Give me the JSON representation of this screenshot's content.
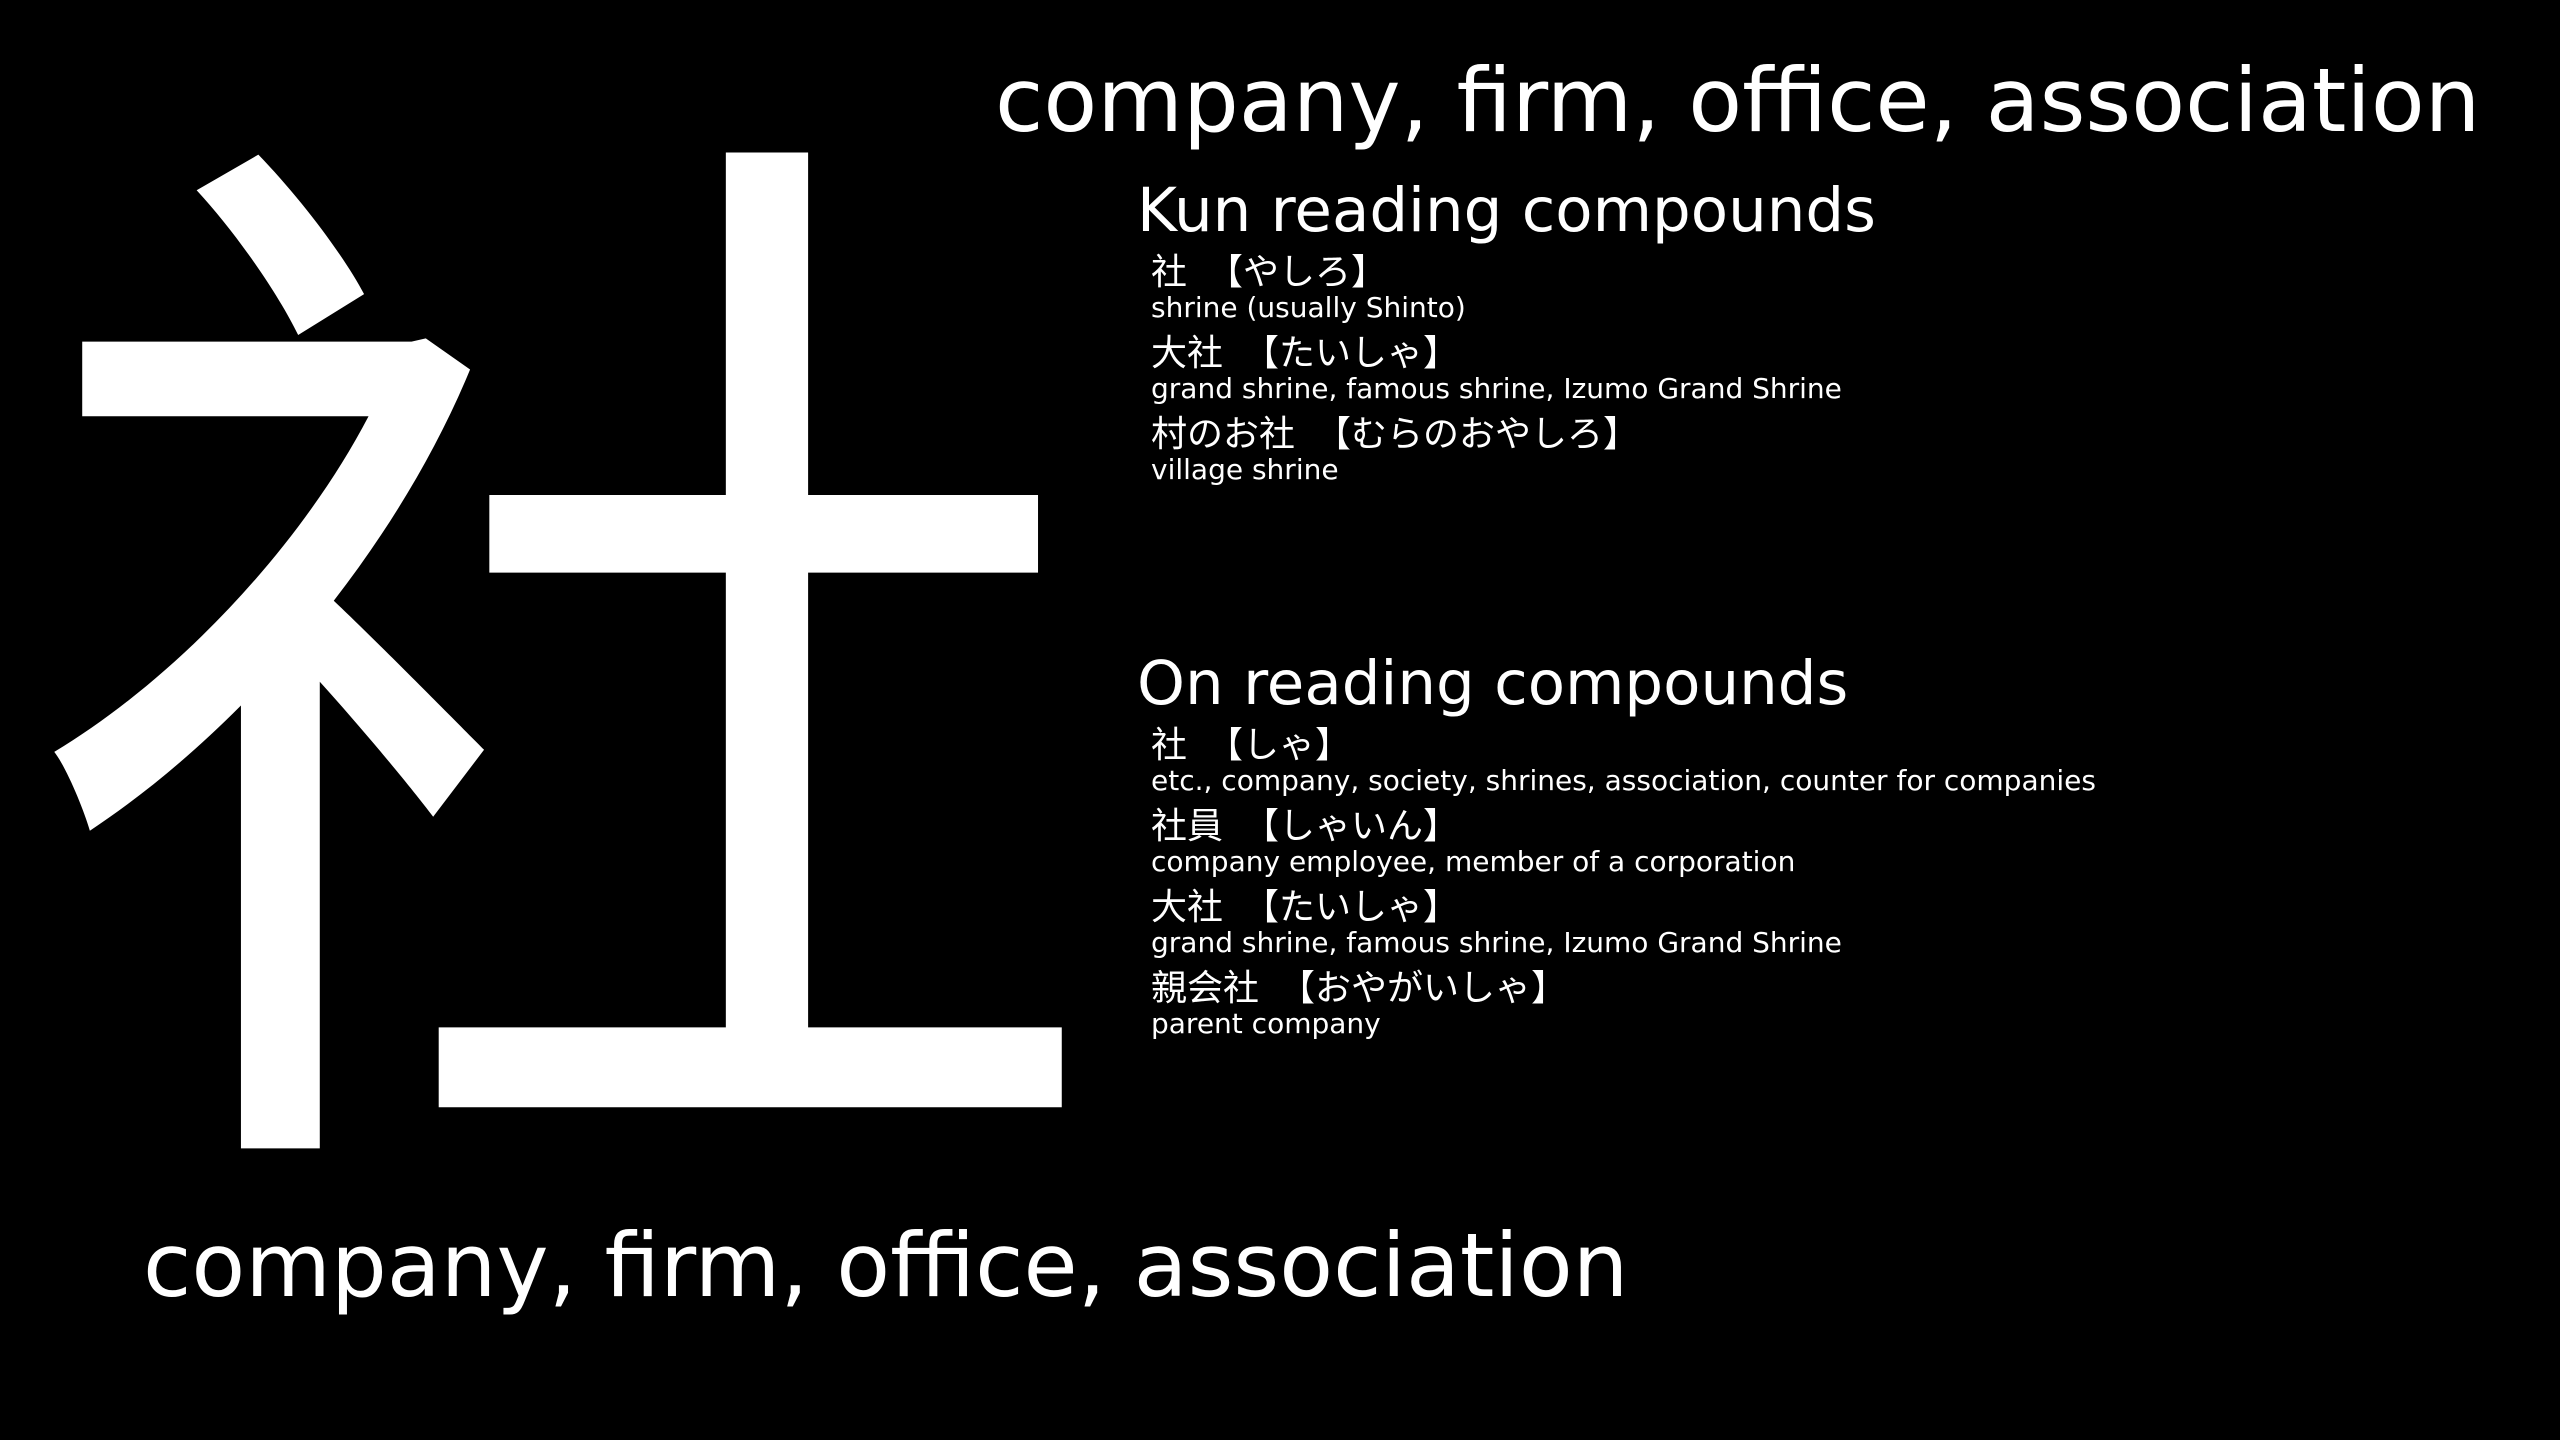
{
  "kanji": {
    "character": "社",
    "meaning": "company, firm, office, association"
  },
  "kun_section": {
    "title": "Kun reading compounds",
    "entries": [
      {
        "word": "社",
        "reading": "【やしろ】",
        "gloss": "shrine (usually Shinto)"
      },
      {
        "word": "大社",
        "reading": "【たいしゃ】",
        "gloss": "grand shrine, famous shrine, Izumo Grand Shrine"
      },
      {
        "word": "村のお社",
        "reading": "【むらのおやしろ】",
        "gloss": "village shrine"
      }
    ]
  },
  "on_section": {
    "title": "On reading compounds",
    "entries": [
      {
        "word": "社",
        "reading": "【しゃ】",
        "gloss": "etc., company, society, shrines, association, counter for companies"
      },
      {
        "word": "社員",
        "reading": "【しゃいん】",
        "gloss": "company employee, member of a corporation"
      },
      {
        "word": "大社",
        "reading": "【たいしゃ】",
        "gloss": "grand shrine, famous shrine, Izumo Grand Shrine"
      },
      {
        "word": "親会社",
        "reading": "【おやがいしゃ】",
        "gloss": "parent company"
      }
    ]
  },
  "colors": {
    "background": "#000000",
    "text": "#ffffff"
  }
}
